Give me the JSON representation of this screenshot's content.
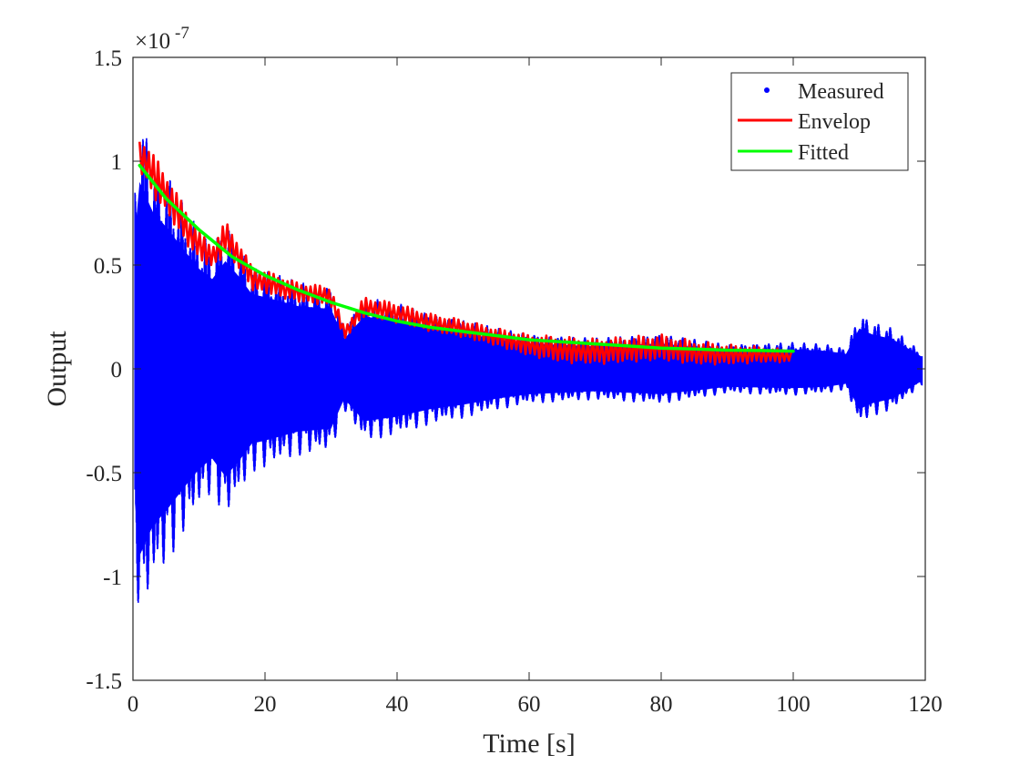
{
  "chart_data": {
    "type": "line",
    "title": "",
    "xlabel": "Time [s]",
    "ylabel": "Output",
    "xlim": [
      0,
      120
    ],
    "ylim": [
      -1.5e-07,
      1.5e-07
    ],
    "y_exponent_label": {
      "base": "×10",
      "exponent": "-7"
    },
    "x_ticks": [
      0,
      20,
      40,
      60,
      80,
      100,
      120
    ],
    "x_tick_labels": [
      "0",
      "20",
      "40",
      "60",
      "80",
      "100",
      "120"
    ],
    "y_ticks": [
      -1.5,
      -1,
      -0.5,
      0,
      0.5,
      1,
      1.5
    ],
    "y_tick_labels": [
      "-1.5",
      "-1",
      "-0.5",
      "0",
      "0.5",
      "1",
      "1.5"
    ],
    "grid": false,
    "legend_position": "top-right",
    "legend": [
      "Measured",
      "Envelop",
      "Fitted"
    ],
    "colors": {
      "Measured": "#0000ff",
      "Envelop": "#ff0000",
      "Fitted": "#00ff00"
    },
    "series": [
      {
        "name": "Measured",
        "style": "dots",
        "description_points": "upper/lower amplitude envelope of dense oscillating samples (x in s, y in 1e-7 units)",
        "x": [
          0.3,
          1,
          2,
          3,
          5,
          8,
          10,
          12,
          14,
          16,
          18,
          20,
          25,
          30,
          32,
          35,
          40,
          45,
          50,
          55,
          60,
          65,
          70,
          80,
          90,
          100,
          105,
          108,
          110,
          112,
          115,
          119.5
        ],
        "upper": [
          0.9,
          1.25,
          1.15,
          1.05,
          0.95,
          0.78,
          0.67,
          0.6,
          0.72,
          0.62,
          0.5,
          0.48,
          0.42,
          0.4,
          0.2,
          0.35,
          0.32,
          0.27,
          0.24,
          0.2,
          0.17,
          0.16,
          0.15,
          0.17,
          0.12,
          0.13,
          0.12,
          0.1,
          0.27,
          0.23,
          0.2,
          0.08
        ],
        "lower": [
          -0.9,
          -1.25,
          -1.15,
          -1.05,
          -0.95,
          -0.78,
          -0.67,
          -0.6,
          -0.72,
          -0.62,
          -0.5,
          -0.48,
          -0.42,
          -0.4,
          -0.2,
          -0.35,
          -0.32,
          -0.27,
          -0.24,
          -0.2,
          -0.17,
          -0.16,
          -0.15,
          -0.17,
          -0.12,
          -0.13,
          -0.12,
          -0.1,
          -0.27,
          -0.23,
          -0.2,
          -0.08
        ]
      },
      {
        "name": "Envelop",
        "style": "line",
        "x": [
          1,
          2,
          3,
          5,
          8,
          10,
          12,
          14,
          16,
          18,
          20,
          25,
          30,
          32,
          35,
          40,
          45,
          50,
          55,
          60,
          65,
          70,
          80,
          85,
          90,
          95,
          100
        ],
        "upper": [
          1.12,
          1.1,
          1.05,
          0.95,
          0.78,
          0.67,
          0.6,
          0.72,
          0.62,
          0.5,
          0.48,
          0.42,
          0.4,
          0.2,
          0.35,
          0.32,
          0.27,
          0.24,
          0.2,
          0.17,
          0.16,
          0.15,
          0.17,
          0.14,
          0.12,
          0.11,
          0.09
        ],
        "lower": [
          0.95,
          0.9,
          0.82,
          0.75,
          0.6,
          0.52,
          0.48,
          0.55,
          0.48,
          0.38,
          0.36,
          0.32,
          0.3,
          0.14,
          0.25,
          0.22,
          0.18,
          0.15,
          0.11,
          0.06,
          0.03,
          0.02,
          0.04,
          0.02,
          0.02,
          0.03,
          0.03
        ]
      },
      {
        "name": "Fitted",
        "style": "line",
        "x": [
          1,
          5,
          10,
          15,
          20,
          25,
          30,
          35,
          40,
          45,
          50,
          55,
          60,
          65,
          70,
          75,
          80,
          85,
          90,
          95,
          100
        ],
        "y": [
          0.98,
          0.82,
          0.67,
          0.54,
          0.45,
          0.38,
          0.32,
          0.27,
          0.23,
          0.2,
          0.18,
          0.16,
          0.14,
          0.13,
          0.12,
          0.11,
          0.1,
          0.095,
          0.09,
          0.088,
          0.085
        ]
      }
    ]
  }
}
